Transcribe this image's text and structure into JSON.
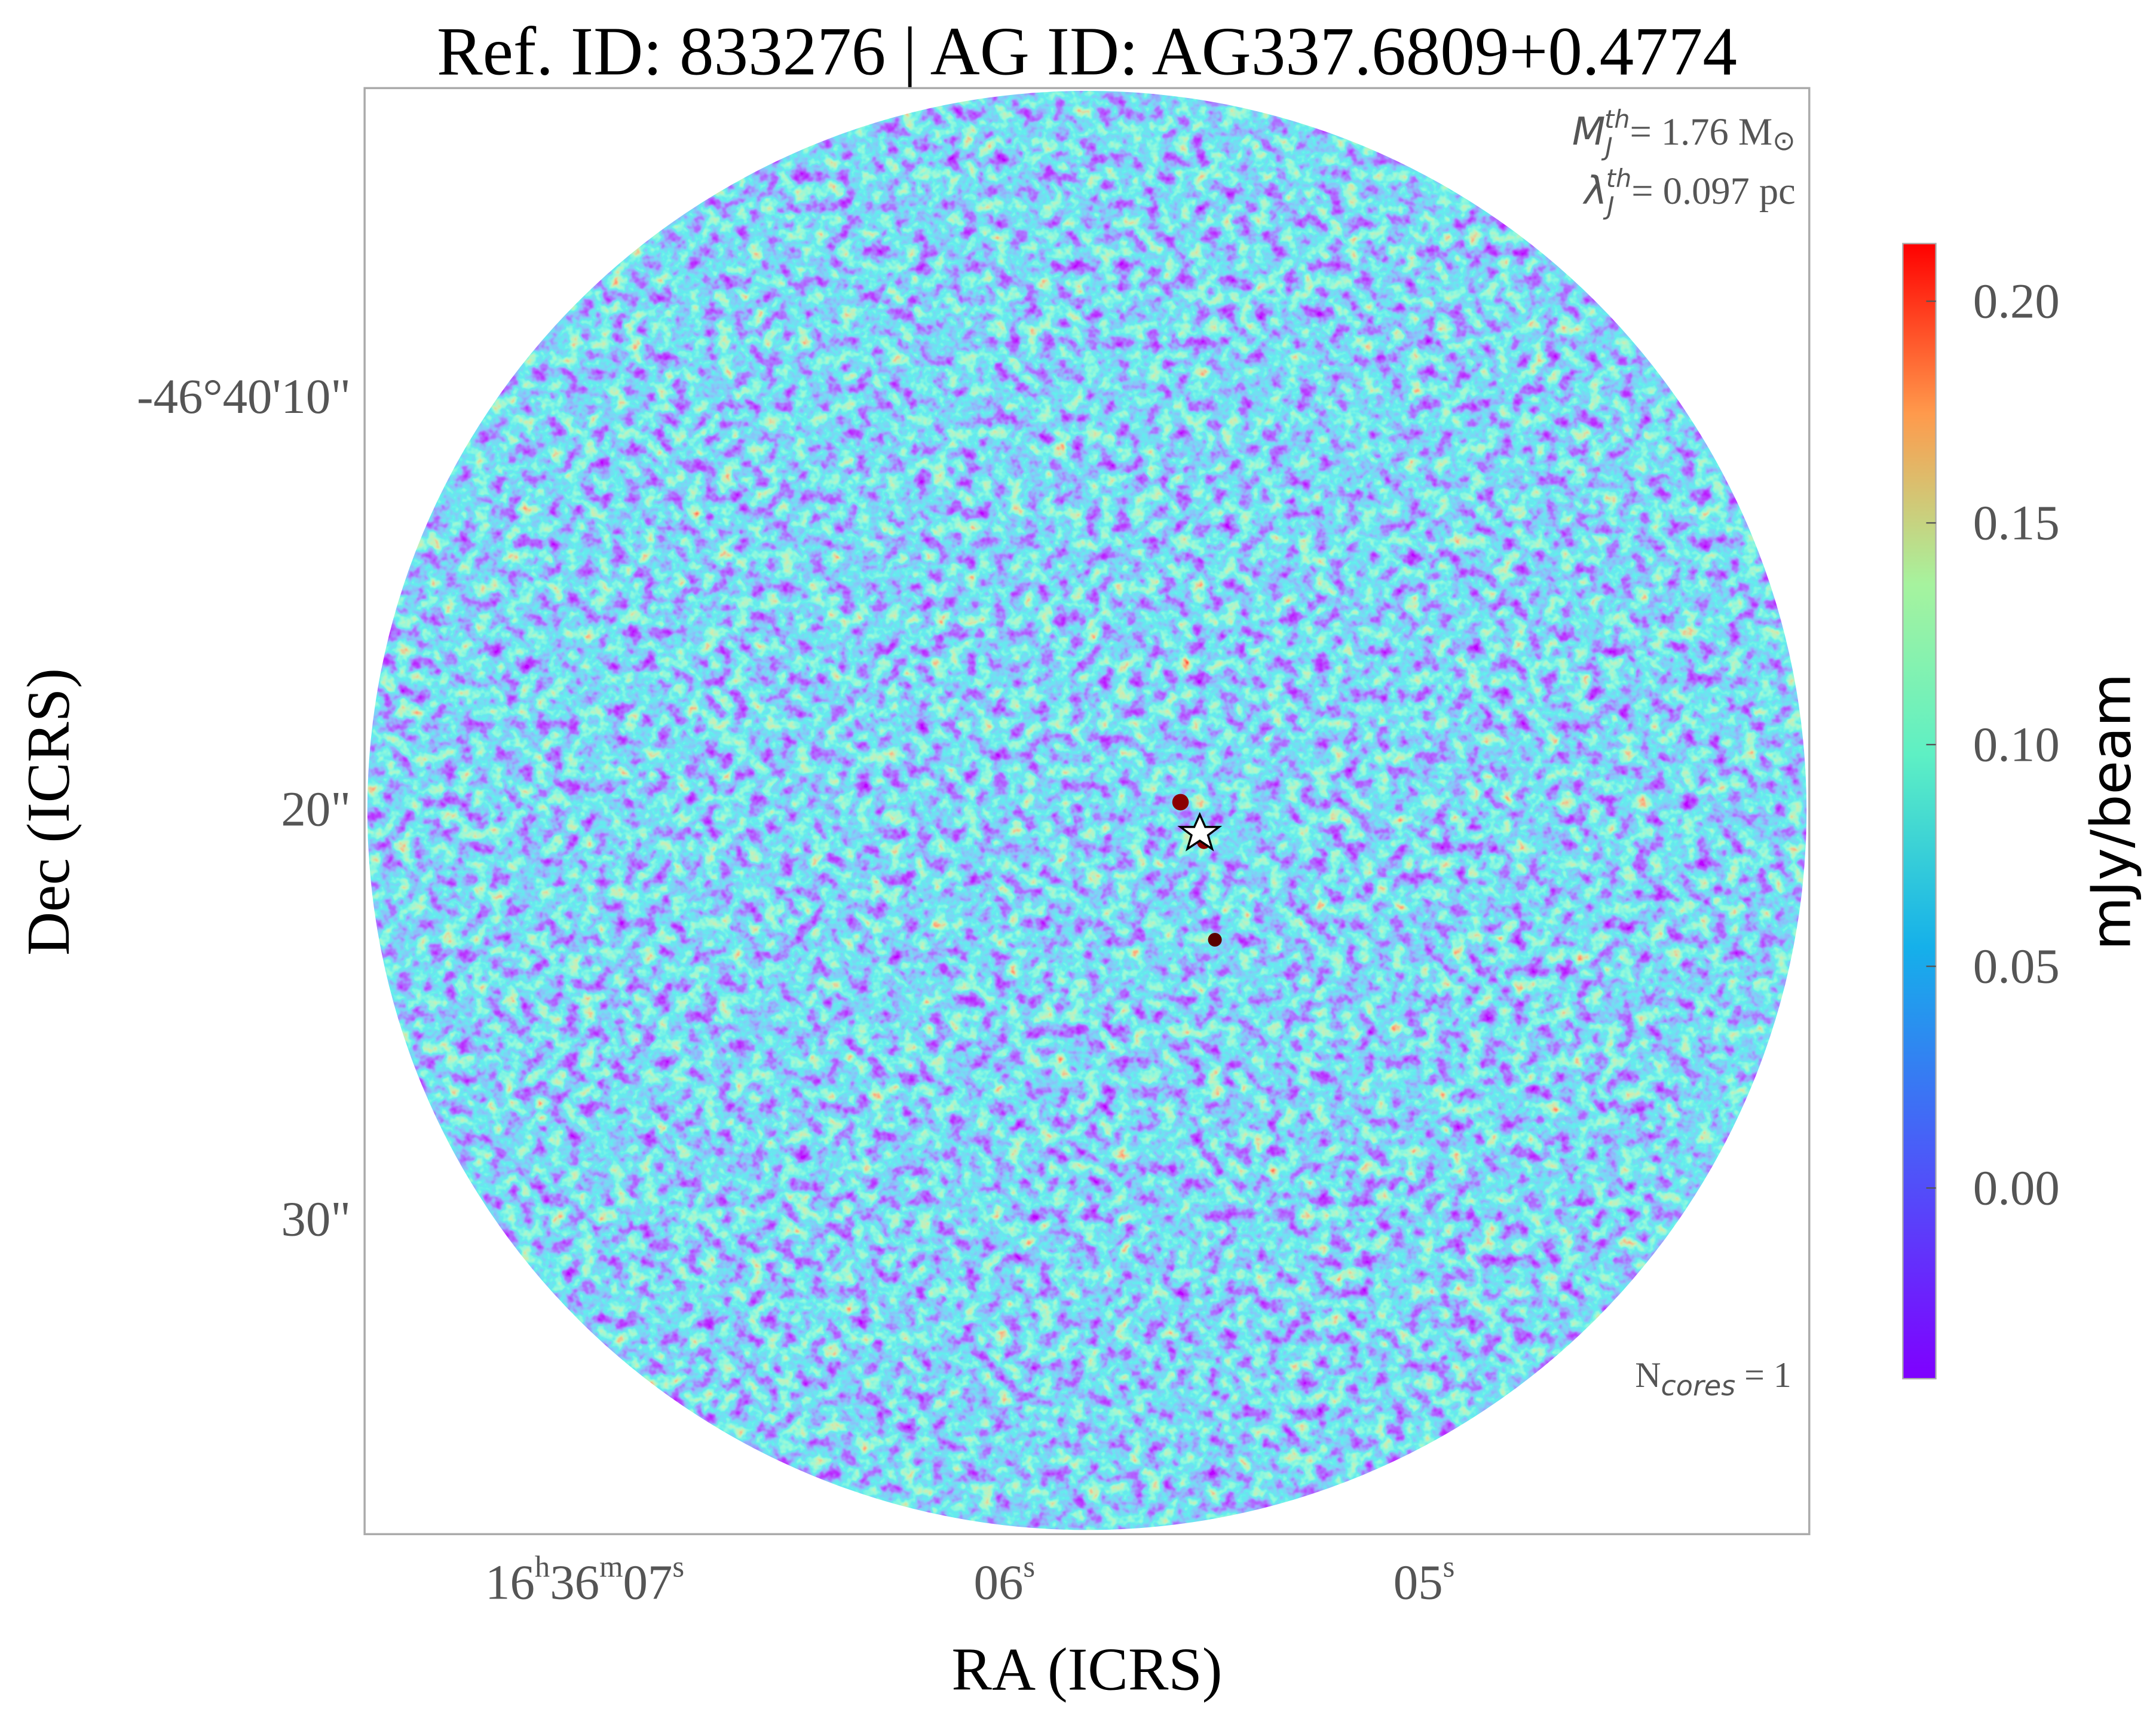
{
  "chart_data": {
    "type": "image",
    "title": "Ref. ID: 833276 | AG ID: AG337.6809+0.4774",
    "x_label": "RA (ICRS)",
    "y_label": "Dec (ICRS)",
    "xtick_labels": [
      [
        "16",
        "h",
        "36",
        "m",
        "07",
        "s"
      ],
      [
        "06",
        "s"
      ],
      [
        "05",
        "s"
      ]
    ],
    "ytick_labels": [
      "-46°40'10\"",
      "20\"",
      "30\""
    ],
    "annotations": {
      "jeans_mass": [
        "M",
        "J",
        "th",
        "= 1.76 M",
        "⊙"
      ],
      "jeans_length": [
        "λ",
        "J",
        "th",
        "= 0.097 pc"
      ],
      "n_cores": [
        "N",
        "cores",
        " = 1"
      ]
    },
    "colorbar": {
      "label": "mJy/beam",
      "lim": [
        -0.043,
        0.213
      ],
      "ticks": [
        {
          "value": 0,
          "label": "0.00"
        },
        0.05,
        {
          "value": 0.1,
          "label": "0.10"
        },
        0.15,
        {
          "value": 0.2,
          "label": "0.20"
        }
      ]
    }
  }
}
